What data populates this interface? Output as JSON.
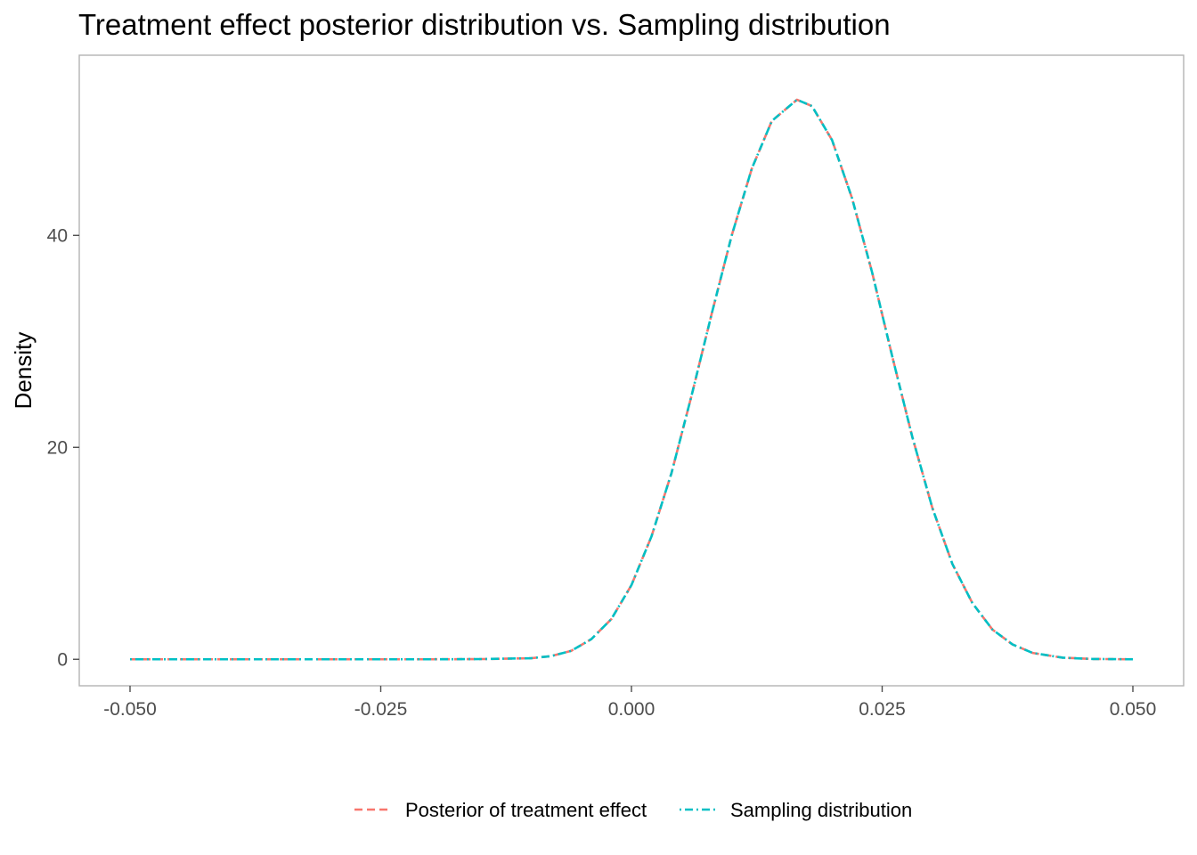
{
  "chart_data": {
    "type": "line",
    "title": "Treatment effect posterior distribution vs. Sampling distribution",
    "xlabel": "",
    "ylabel": "Density",
    "xlim": [
      -0.05,
      0.05
    ],
    "ylim": [
      -2.5,
      57
    ],
    "x_ticks": [
      -0.05,
      -0.025,
      0.0,
      0.025,
      0.05
    ],
    "x_tick_labels": [
      "-0.050",
      "-0.025",
      "0.000",
      "0.025",
      "0.050"
    ],
    "y_ticks": [
      0,
      20,
      40
    ],
    "y_tick_labels": [
      "0",
      "20",
      "40"
    ],
    "grid": false,
    "legend_position": "bottom",
    "series": [
      {
        "name": "Posterior of treatment effect",
        "color": "#F8766D",
        "x": [
          -0.05,
          -0.04,
          -0.03,
          -0.02,
          -0.015,
          -0.01,
          -0.008,
          -0.006,
          -0.004,
          -0.002,
          0.0,
          0.002,
          0.004,
          0.006,
          0.008,
          0.01,
          0.012,
          0.014,
          0.0165,
          0.018,
          0.02,
          0.022,
          0.024,
          0.026,
          0.028,
          0.03,
          0.032,
          0.034,
          0.036,
          0.038,
          0.04,
          0.043,
          0.046,
          0.05
        ],
        "y": [
          0.0,
          0.0,
          0.0,
          0.0,
          0.02,
          0.1,
          0.3,
          0.8,
          1.9,
          3.8,
          7.0,
          11.6,
          17.6,
          24.9,
          32.6,
          40.0,
          46.3,
          50.8,
          52.8,
          52.2,
          49.0,
          43.5,
          36.5,
          28.6,
          21.0,
          14.3,
          9.0,
          5.3,
          2.8,
          1.4,
          0.6,
          0.15,
          0.03,
          0.0
        ]
      },
      {
        "name": "Sampling distribution",
        "color": "#00BFC4",
        "x": [
          -0.05,
          -0.04,
          -0.03,
          -0.02,
          -0.015,
          -0.01,
          -0.008,
          -0.006,
          -0.004,
          -0.002,
          0.0,
          0.002,
          0.004,
          0.006,
          0.008,
          0.01,
          0.012,
          0.014,
          0.0165,
          0.018,
          0.02,
          0.022,
          0.024,
          0.026,
          0.028,
          0.03,
          0.032,
          0.034,
          0.036,
          0.038,
          0.04,
          0.043,
          0.046,
          0.05
        ],
        "y": [
          0.0,
          0.0,
          0.0,
          0.0,
          0.02,
          0.1,
          0.3,
          0.8,
          1.9,
          3.8,
          7.0,
          11.6,
          17.6,
          24.9,
          32.6,
          40.0,
          46.3,
          50.8,
          52.8,
          52.2,
          49.0,
          43.5,
          36.5,
          28.6,
          21.0,
          14.3,
          9.0,
          5.3,
          2.8,
          1.4,
          0.6,
          0.15,
          0.03,
          0.0
        ]
      }
    ]
  }
}
